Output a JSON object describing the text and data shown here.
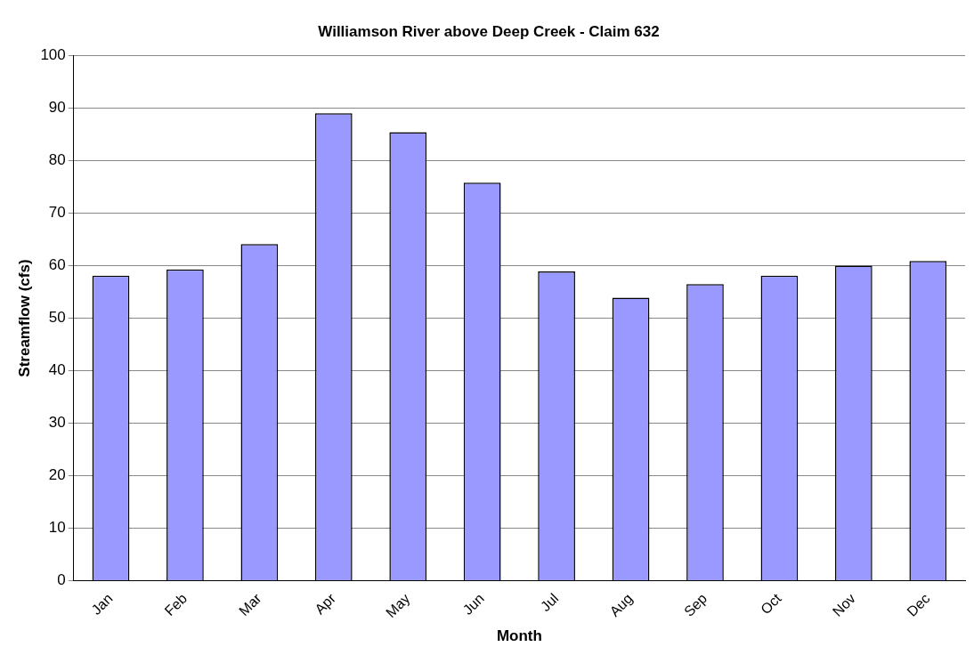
{
  "chart_data": {
    "type": "bar",
    "title": "Williamson River above Deep Creek - Claim 632",
    "xlabel": "Month",
    "ylabel": "Streamflow (cfs)",
    "categories": [
      "Jan",
      "Feb",
      "Mar",
      "Apr",
      "May",
      "Jun",
      "Jul",
      "Aug",
      "Sep",
      "Oct",
      "Nov",
      "Dec"
    ],
    "values": [
      58.1,
      59.3,
      64.1,
      89.0,
      85.4,
      75.8,
      58.9,
      53.9,
      56.5,
      58.1,
      60.0,
      60.9
    ],
    "color": "#9999ff",
    "ylim": [
      0,
      100
    ],
    "yticks": [
      0,
      10,
      20,
      30,
      40,
      50,
      60,
      70,
      80,
      90,
      100
    ],
    "grid": "y",
    "legend": false
  }
}
